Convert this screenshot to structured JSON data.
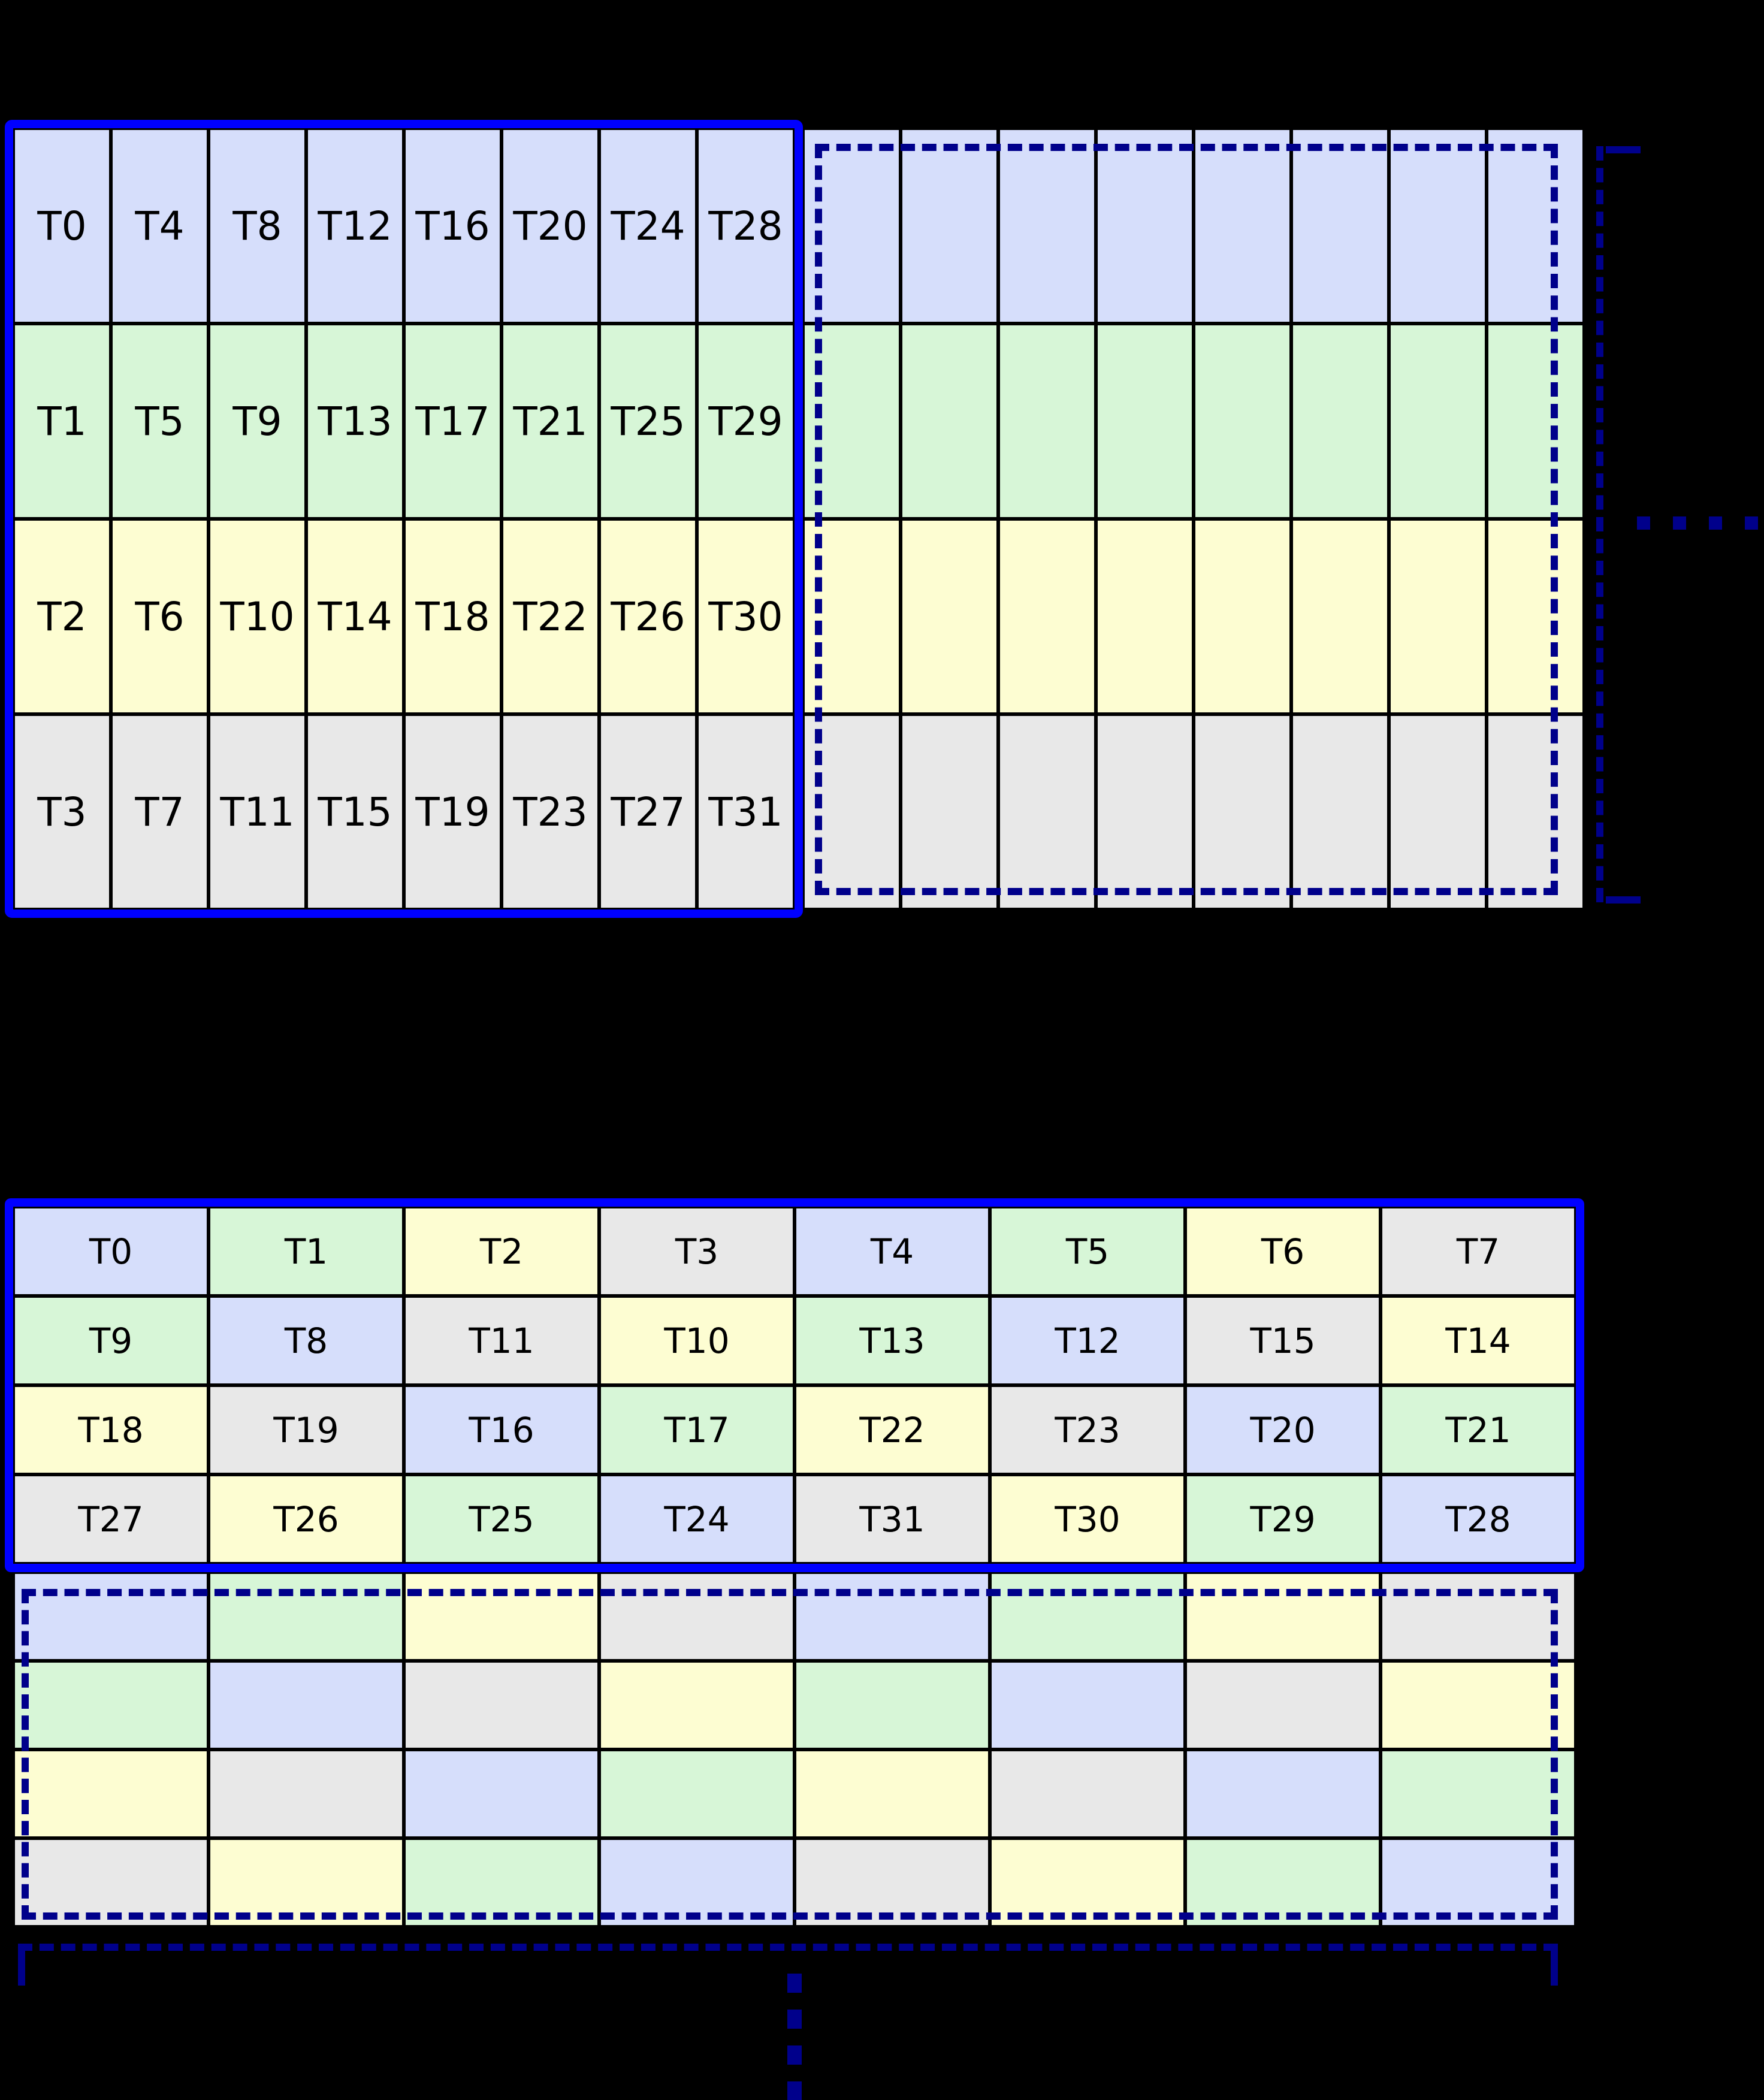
{
  "colors": {
    "background": "#000000",
    "cell_blue": "#d6defb",
    "cell_green": "#d7f6d7",
    "cell_yellow": "#fdfdd2",
    "cell_gray": "#e8e8e8",
    "solid_block_border": "#0000ff",
    "dashed_outline": "#00008b",
    "grid_line": "#000000",
    "label_text": "#000000"
  },
  "top_grid": {
    "labeled_rows": [
      {
        "color": "blue",
        "labels": [
          "T0",
          "T4",
          "T8",
          "T12",
          "T16",
          "T20",
          "T24",
          "T28"
        ]
      },
      {
        "color": "green",
        "labels": [
          "T1",
          "T5",
          "T9",
          "T13",
          "T17",
          "T21",
          "T25",
          "T29"
        ]
      },
      {
        "color": "yellow",
        "labels": [
          "T2",
          "T6",
          "T10",
          "T14",
          "T18",
          "T22",
          "T26",
          "T30"
        ]
      },
      {
        "color": "gray",
        "labels": [
          "T3",
          "T7",
          "T11",
          "T15",
          "T19",
          "T23",
          "T27",
          "T31"
        ]
      }
    ],
    "continuation_columns": 8,
    "horizontal_dots_count": 4
  },
  "bottom_grid": {
    "labeled_rows": [
      {
        "labels": [
          "T0",
          "T1",
          "T2",
          "T3",
          "T4",
          "T5",
          "T6",
          "T7"
        ],
        "colors": [
          "blue",
          "green",
          "yellow",
          "gray",
          "blue",
          "green",
          "yellow",
          "gray"
        ]
      },
      {
        "labels": [
          "T9",
          "T8",
          "T11",
          "T10",
          "T13",
          "T12",
          "T15",
          "T14"
        ],
        "colors": [
          "green",
          "blue",
          "gray",
          "yellow",
          "green",
          "blue",
          "gray",
          "yellow"
        ]
      },
      {
        "labels": [
          "T18",
          "T19",
          "T16",
          "T17",
          "T22",
          "T23",
          "T20",
          "T21"
        ],
        "colors": [
          "yellow",
          "gray",
          "blue",
          "green",
          "yellow",
          "gray",
          "blue",
          "green"
        ]
      },
      {
        "labels": [
          "T27",
          "T26",
          "T25",
          "T24",
          "T31",
          "T30",
          "T29",
          "T28"
        ],
        "colors": [
          "gray",
          "yellow",
          "green",
          "blue",
          "gray",
          "yellow",
          "green",
          "blue"
        ]
      }
    ],
    "unlabeled_rows": [
      {
        "colors": [
          "blue",
          "green",
          "yellow",
          "gray",
          "blue",
          "green",
          "yellow",
          "gray"
        ]
      },
      {
        "colors": [
          "green",
          "blue",
          "gray",
          "yellow",
          "green",
          "blue",
          "gray",
          "yellow"
        ]
      },
      {
        "colors": [
          "yellow",
          "gray",
          "blue",
          "green",
          "yellow",
          "gray",
          "blue",
          "green"
        ]
      },
      {
        "colors": [
          "gray",
          "yellow",
          "green",
          "blue",
          "gray",
          "yellow",
          "green",
          "blue"
        ]
      }
    ],
    "vertical_dots_count": 4
  }
}
